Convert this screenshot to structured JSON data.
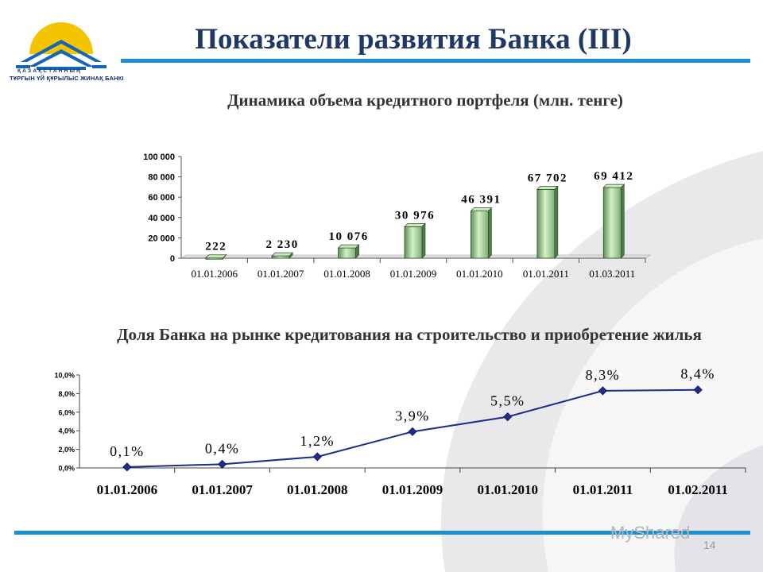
{
  "logo": {
    "line1": "ҚАЗАҚСТАННЫҢ",
    "line2": "ТҰРҒЫН ҮЙ ҚҰРЫЛЫС ЖИНАҚ БАНКІ"
  },
  "title": "Показатели развития Банка (III)",
  "subtitle1": "Динамика объема кредитного портфеля (млн. тенге)",
  "subtitle2": "Доля Банка на рынке кредитования на строительство и приобретение жилья",
  "page_number": "14",
  "watermark": "MyShared",
  "colors": {
    "title": "#1f3864",
    "rule": "#1b8fd0",
    "bar": "#a9d89f",
    "line": "#1c2e8a"
  },
  "chart_data": [
    {
      "type": "bar",
      "categories": [
        "01.01.2006",
        "01.01.2007",
        "01.01.2008",
        "01.01.2009",
        "01.01.2010",
        "01.01.2011",
        "01.03.2011"
      ],
      "values": [
        222,
        2230,
        10076,
        30976,
        46391,
        67702,
        69412
      ],
      "value_labels": [
        "222",
        "2 230",
        "10 076",
        "30 976",
        "46 391",
        "67 702",
        "69 412"
      ],
      "ylim": [
        0,
        100000
      ],
      "yticks": [
        0,
        20000,
        40000,
        60000,
        80000,
        100000
      ],
      "ytick_labels": [
        "0",
        "20 000",
        "40 000",
        "60 000",
        "80 000",
        "100 000"
      ],
      "title": "Динамика объема кредитного портфеля (млн. тенге)",
      "grid": false,
      "legend": "none"
    },
    {
      "type": "line",
      "categories": [
        "01.01.2006",
        "01.01.2007",
        "01.01.2008",
        "01.01.2009",
        "01.01.2010",
        "01.01.2011",
        "01.02.2011"
      ],
      "values": [
        0.1,
        0.4,
        1.2,
        3.9,
        5.5,
        8.3,
        8.4
      ],
      "value_labels": [
        "0,1%",
        "0,4%",
        "1,2%",
        "3,9%",
        "5,5%",
        "8,3%",
        "8,4%"
      ],
      "ylim": [
        0,
        10
      ],
      "yticks": [
        0,
        2,
        4,
        6,
        8,
        10
      ],
      "ytick_labels": [
        "0,0%",
        "2,0%",
        "4,0%",
        "6,0%",
        "8,0%",
        "10,0%"
      ],
      "title": "Доля Банка на рынке кредитования на строительство и приобретение жилья",
      "grid": false,
      "legend": "none"
    }
  ]
}
